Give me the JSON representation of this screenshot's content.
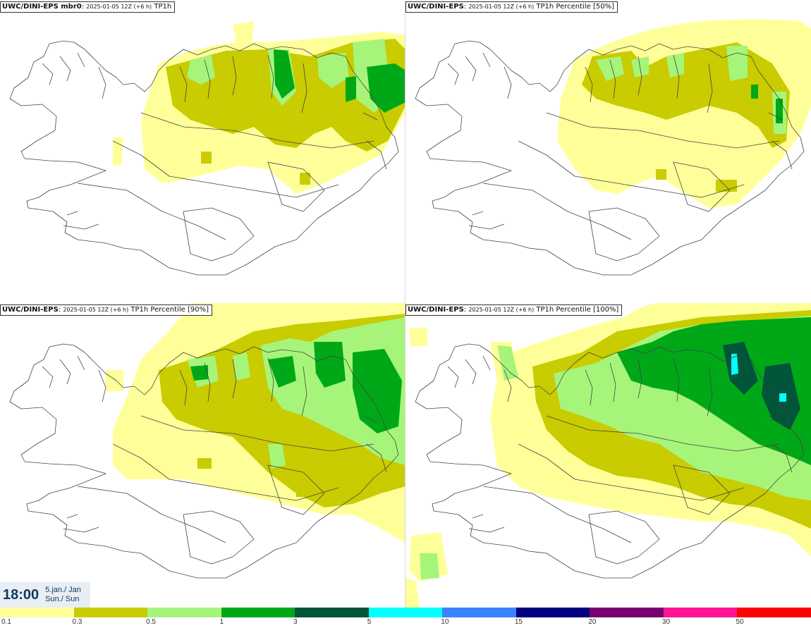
{
  "panels": [
    {
      "model": "UWC/DINI-EPS mbr0",
      "meta": "2025-01-05 12Z (+6 h)",
      "field": "TP1h"
    },
    {
      "model": "UWC/DINI-EPS",
      "meta": "2025-01-05 12Z (+6 h)",
      "field": "TP1h Percentile [50%]"
    },
    {
      "model": "UWC/DINI-EPS",
      "meta": "2025-01-05 12Z (+6 h)",
      "field": "TP1h Percentile [90%]"
    },
    {
      "model": "UWC/DINI-EPS",
      "meta": "2025-01-05 12Z (+6 h)",
      "field": "TP1h Percentile [100%]"
    }
  ],
  "valid_time": {
    "clock": "18:00",
    "date_line": "5.jan./ Jan",
    "day_line": "Sun./ Sun"
  },
  "legend": {
    "labels": [
      "0.1",
      "0.3",
      "0.5",
      "1",
      "3",
      "5",
      "10",
      "15",
      "20",
      "30",
      "50"
    ],
    "colors": [
      "#ffff99",
      "#c8cc00",
      "#a6f57a",
      "#00a818",
      "#00553a",
      "#00ffff",
      "#3c82ff",
      "#000080",
      "#7a0070",
      "#ff1493",
      "#ff0000"
    ]
  },
  "colors": {
    "c1": "#ffff99",
    "c2": "#c8cc00",
    "c3": "#a6f57a",
    "c4": "#00a818",
    "c5": "#00553a",
    "c6": "#00ffff"
  }
}
